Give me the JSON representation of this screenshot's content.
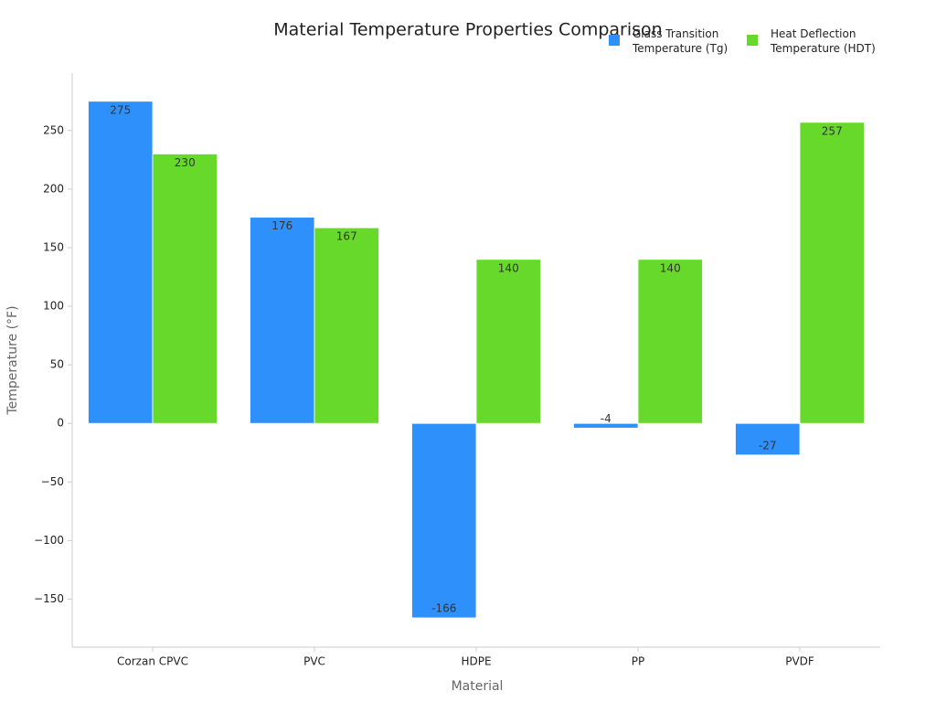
{
  "chart_data": {
    "type": "bar",
    "title": "Material Temperature Properties Comparison",
    "x_label": "Material",
    "y_label": "Temperature (°F)",
    "categories": [
      "Corzan CPVC",
      "PVC",
      "HDPE",
      "PP",
      "PVDF"
    ],
    "series": [
      {
        "name": "Glass Transition Temperature (Tg)",
        "color": "#2e90fa",
        "values": [
          275,
          176,
          -166,
          -4,
          -27
        ]
      },
      {
        "name": "Heat Deflection Temperature (HDT)",
        "color": "#66d92a",
        "values": [
          230,
          167,
          140,
          140,
          257
        ]
      }
    ],
    "ylim": [
      -191,
      299
    ],
    "yticks": [
      {
        "value": -150,
        "label": "−150"
      },
      {
        "value": -100,
        "label": "−100"
      },
      {
        "value": -50,
        "label": "−50"
      },
      0,
      50,
      100,
      150,
      200,
      250
    ],
    "legend": "upper right",
    "grid": false
  }
}
